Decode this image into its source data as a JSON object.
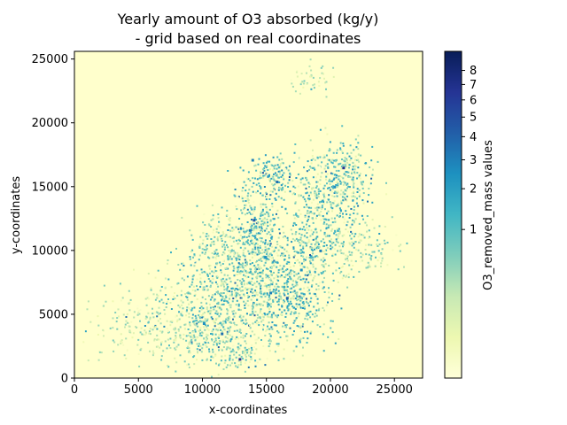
{
  "chart_data": {
    "type": "heatmap",
    "title": "Yearly amount of O3 absorbed (kg/y)",
    "subtitle": "- grid based on real coordinates",
    "xlabel": "x-coordinates",
    "ylabel": "y-coordinates",
    "xlim": [
      0,
      27200
    ],
    "ylim": [
      0,
      25600
    ],
    "xticks": [
      0,
      5000,
      10000,
      15000,
      20000,
      25000
    ],
    "yticks": [
      0,
      5000,
      10000,
      15000,
      20000,
      25000
    ],
    "grid": false,
    "background_color": "#ffffcc",
    "colormap": "YlGnBu",
    "colorbar": {
      "label": "O3_removed_mass values",
      "ticks": [
        1,
        2,
        3,
        4,
        5,
        6,
        7,
        8
      ],
      "scale": "power",
      "range": [
        0.0,
        9.5
      ],
      "stops": [
        "#ffffd9",
        "#edf8b1",
        "#c7e9b4",
        "#7fcdbb",
        "#41b6c4",
        "#1d91c0",
        "#225ea8",
        "#253494",
        "#081d58"
      ]
    },
    "clusters": [
      {
        "x": 12500,
        "y": 6500,
        "sx": 2600,
        "sy": 2000,
        "n": 520,
        "level": 1.1
      },
      {
        "x": 16500,
        "y": 7000,
        "sx": 1800,
        "sy": 2200,
        "n": 560,
        "level": 1.3
      },
      {
        "x": 14200,
        "y": 11500,
        "sx": 1000,
        "sy": 2400,
        "n": 380,
        "level": 1.3
      },
      {
        "x": 19000,
        "y": 12500,
        "sx": 1400,
        "sy": 2600,
        "n": 440,
        "level": 1.2
      },
      {
        "x": 21000,
        "y": 16000,
        "sx": 1200,
        "sy": 1500,
        "n": 260,
        "level": 1.2
      },
      {
        "x": 10500,
        "y": 3500,
        "sx": 1700,
        "sy": 1200,
        "n": 240,
        "level": 0.7
      },
      {
        "x": 6000,
        "y": 4500,
        "sx": 2500,
        "sy": 1600,
        "n": 260,
        "level": 0.4
      },
      {
        "x": 22500,
        "y": 10500,
        "sx": 1400,
        "sy": 1100,
        "n": 130,
        "level": 0.6
      },
      {
        "x": 11200,
        "y": 10500,
        "sx": 1100,
        "sy": 1300,
        "n": 160,
        "level": 0.7
      },
      {
        "x": 15500,
        "y": 16000,
        "sx": 700,
        "sy": 900,
        "n": 110,
        "level": 1.4
      },
      {
        "x": 13000,
        "y": 1800,
        "sx": 1200,
        "sy": 500,
        "n": 70,
        "level": 0.8
      },
      {
        "x": 18500,
        "y": 23500,
        "sx": 900,
        "sy": 600,
        "n": 45,
        "level": 0.4
      }
    ],
    "hotspots": [
      {
        "x": 21000,
        "y": 16500,
        "v": 6.5
      },
      {
        "x": 14000,
        "y": 12400,
        "v": 4.5
      },
      {
        "x": 12900,
        "y": 1500,
        "v": 6.0
      },
      {
        "x": 16600,
        "y": 6300,
        "v": 4.0
      },
      {
        "x": 11500,
        "y": 3500,
        "v": 3.5
      },
      {
        "x": 13900,
        "y": 17100,
        "v": 3.0
      },
      {
        "x": 15800,
        "y": 15400,
        "v": 3.5
      },
      {
        "x": 19200,
        "y": 10000,
        "v": 3.0
      },
      {
        "x": 14900,
        "y": 9500,
        "v": 2.5
      },
      {
        "x": 13700,
        "y": 11600,
        "v": 3.0
      },
      {
        "x": 17700,
        "y": 8500,
        "v": 2.5
      },
      {
        "x": 20300,
        "y": 15000,
        "v": 2.5
      },
      {
        "x": 15300,
        "y": 6700,
        "v": 3.0
      },
      {
        "x": 10100,
        "y": 4300,
        "v": 2.5
      }
    ]
  }
}
